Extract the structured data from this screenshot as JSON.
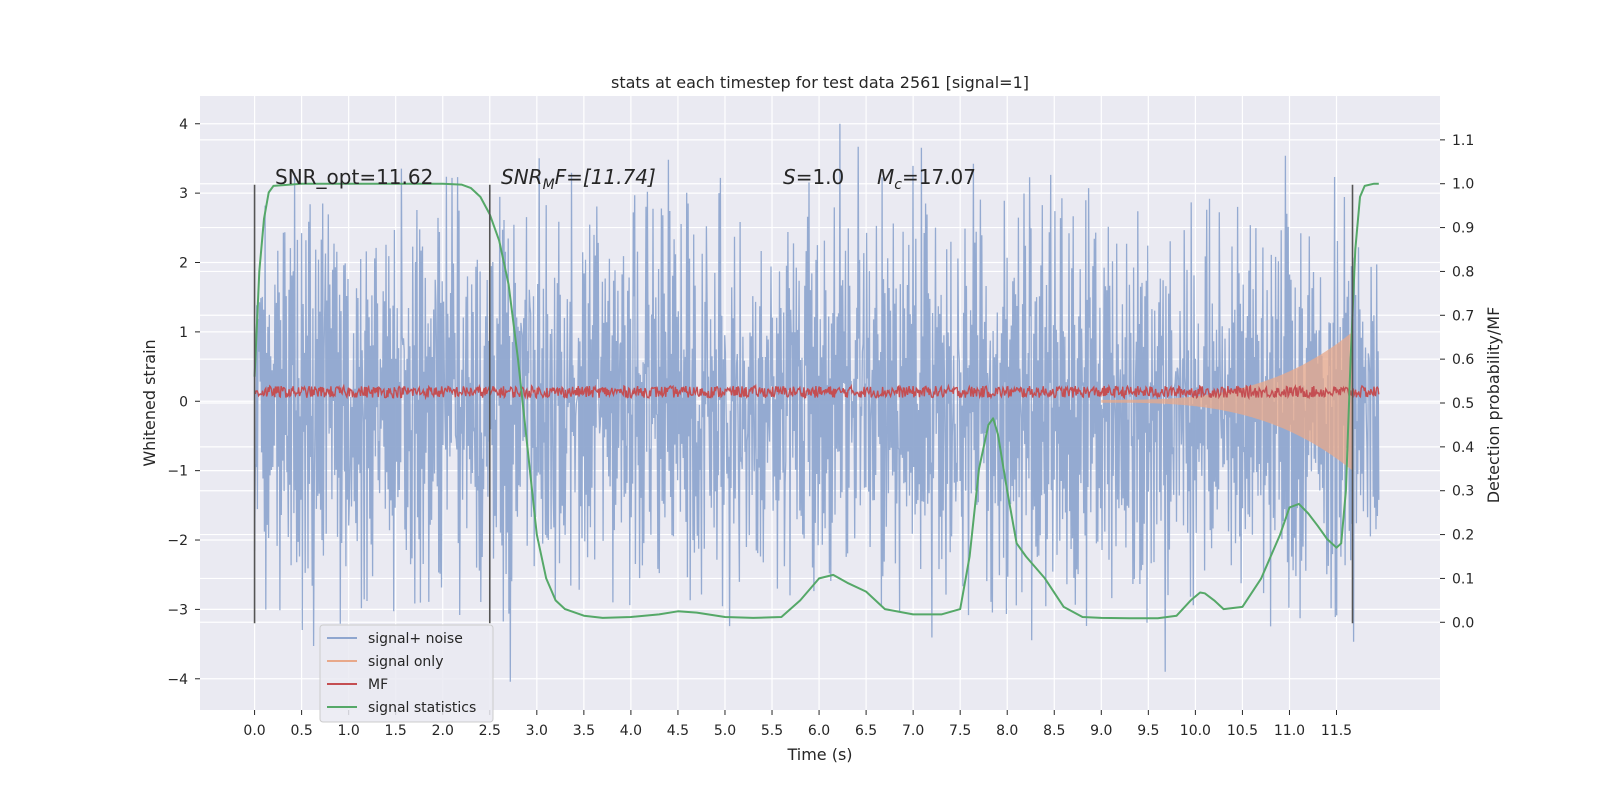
{
  "chart_data": {
    "type": "line",
    "title": "stats at each timestep for test data 2561 [signal=1]",
    "xlabel": "Time (s)",
    "ylabel_left": "Whitened strain",
    "ylabel_right": "Detection probability/MF",
    "xlim": [
      -0.58,
      12.6
    ],
    "ylim_left": [
      -4.45,
      4.4
    ],
    "ylim_right": [
      -0.2,
      1.2
    ],
    "grid": true,
    "legend_position": "lower-left",
    "x_ticks": [
      "0.0",
      "0.5",
      "1.0",
      "1.5",
      "2.0",
      "2.5",
      "3.0",
      "3.5",
      "4.0",
      "4.5",
      "5.0",
      "5.5",
      "6.0",
      "6.5",
      "7.0",
      "7.5",
      "8.0",
      "8.5",
      "9.0",
      "9.5",
      "10.0",
      "10.5",
      "11.0",
      "11.5"
    ],
    "y_ticks_left": [
      "4",
      "3",
      "2",
      "1",
      "0",
      "−1",
      "−2",
      "−3",
      "−4"
    ],
    "y_ticks_right": [
      "1.1",
      "1.0",
      "0.9",
      "0.8",
      "0.7",
      "0.6",
      "0.5",
      "0.4",
      "0.3",
      "0.2",
      "0.1",
      "0.0"
    ],
    "annotations": {
      "snr_opt": "SNR_opt=11.62",
      "snr_mf_pre": "SNR",
      "snr_mf_sub": "M",
      "snr_mf_post": "F=[11.74]",
      "s_var": "S",
      "s_val": "=1.0",
      "mc_var": "M",
      "mc_sub": "c",
      "mc_val": "=17.07"
    },
    "vertical_markers_x": [
      0.0,
      2.5,
      11.67
    ],
    "vertical_marker_range": [
      -3.2,
      3.12
    ],
    "series": [
      {
        "name": "signal+ noise",
        "color": "#8fa6cf",
        "amplitude_range": [
          -4.1,
          4.0
        ],
        "x_range": [
          0.0,
          11.95
        ]
      },
      {
        "name": "signal only",
        "color": "#e8a88a",
        "envelope_end_amplitude": 1.0,
        "x_range": [
          9.0,
          11.67
        ]
      },
      {
        "name": "MF",
        "color": "#c44e52",
        "band_range": [
          0.02,
          0.3
        ],
        "x_range": [
          0.0,
          11.95
        ]
      },
      {
        "name": "signal statistics",
        "color": "#55a868",
        "x": [
          0.0,
          0.05,
          0.1,
          0.15,
          0.2,
          0.5,
          1.0,
          1.5,
          2.0,
          2.2,
          2.3,
          2.4,
          2.5,
          2.6,
          2.7,
          2.8,
          2.9,
          3.0,
          3.1,
          3.2,
          3.3,
          3.5,
          3.7,
          4.0,
          4.3,
          4.5,
          4.7,
          5.0,
          5.3,
          5.6,
          5.8,
          6.0,
          6.15,
          6.3,
          6.5,
          6.7,
          7.0,
          7.3,
          7.5,
          7.6,
          7.7,
          7.8,
          7.85,
          7.9,
          8.0,
          8.1,
          8.2,
          8.4,
          8.6,
          8.8,
          9.0,
          9.3,
          9.6,
          9.8,
          9.95,
          10.05,
          10.1,
          10.2,
          10.3,
          10.5,
          10.7,
          10.9,
          11.0,
          11.1,
          11.2,
          11.3,
          11.4,
          11.5,
          11.55,
          11.6,
          11.65,
          11.7,
          11.75,
          11.8,
          11.9,
          11.95
        ],
        "values": [
          0.56,
          0.8,
          0.92,
          0.98,
          0.995,
          1.0,
          1.0,
          1.0,
          1.0,
          0.998,
          0.99,
          0.97,
          0.93,
          0.87,
          0.77,
          0.6,
          0.4,
          0.2,
          0.1,
          0.05,
          0.03,
          0.015,
          0.01,
          0.012,
          0.018,
          0.025,
          0.022,
          0.012,
          0.01,
          0.012,
          0.05,
          0.1,
          0.108,
          0.09,
          0.07,
          0.03,
          0.018,
          0.018,
          0.03,
          0.15,
          0.35,
          0.45,
          0.465,
          0.43,
          0.3,
          0.18,
          0.15,
          0.1,
          0.035,
          0.012,
          0.01,
          0.009,
          0.009,
          0.015,
          0.05,
          0.068,
          0.066,
          0.05,
          0.03,
          0.035,
          0.1,
          0.2,
          0.262,
          0.27,
          0.248,
          0.22,
          0.19,
          0.17,
          0.18,
          0.3,
          0.6,
          0.85,
          0.97,
          0.995,
          1.0,
          1.0
        ]
      }
    ]
  }
}
